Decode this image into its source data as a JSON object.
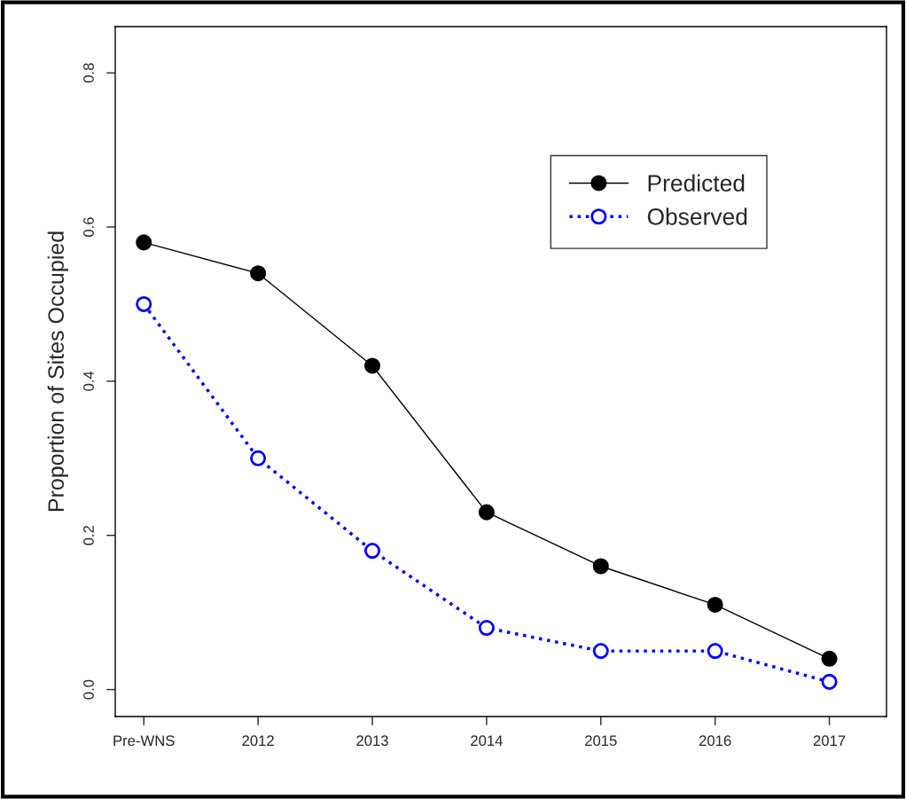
{
  "chart_data": {
    "type": "line",
    "ylabel": "Proportion of Sites Occupied",
    "categories": [
      "Pre-WNS",
      "2012",
      "2013",
      "2014",
      "2015",
      "2016",
      "2017"
    ],
    "series": [
      {
        "name": "Predicted",
        "color": "#000000",
        "line_style": "solid",
        "values": [
          0.58,
          0.54,
          0.42,
          0.23,
          0.16,
          0.11,
          0.04
        ]
      },
      {
        "name": "Observed",
        "color": "#0000ff",
        "line_style": "dotted",
        "values": [
          0.5,
          0.3,
          0.18,
          0.08,
          0.05,
          0.05,
          0.01
        ]
      }
    ],
    "ylim": [
      -0.035,
      0.86
    ],
    "yticks": [
      {
        "value": 0,
        "label": "0.0"
      },
      0.2,
      0.4,
      0.6,
      0.8
    ],
    "marker": "circle",
    "legend": "top right",
    "grid": false
  }
}
